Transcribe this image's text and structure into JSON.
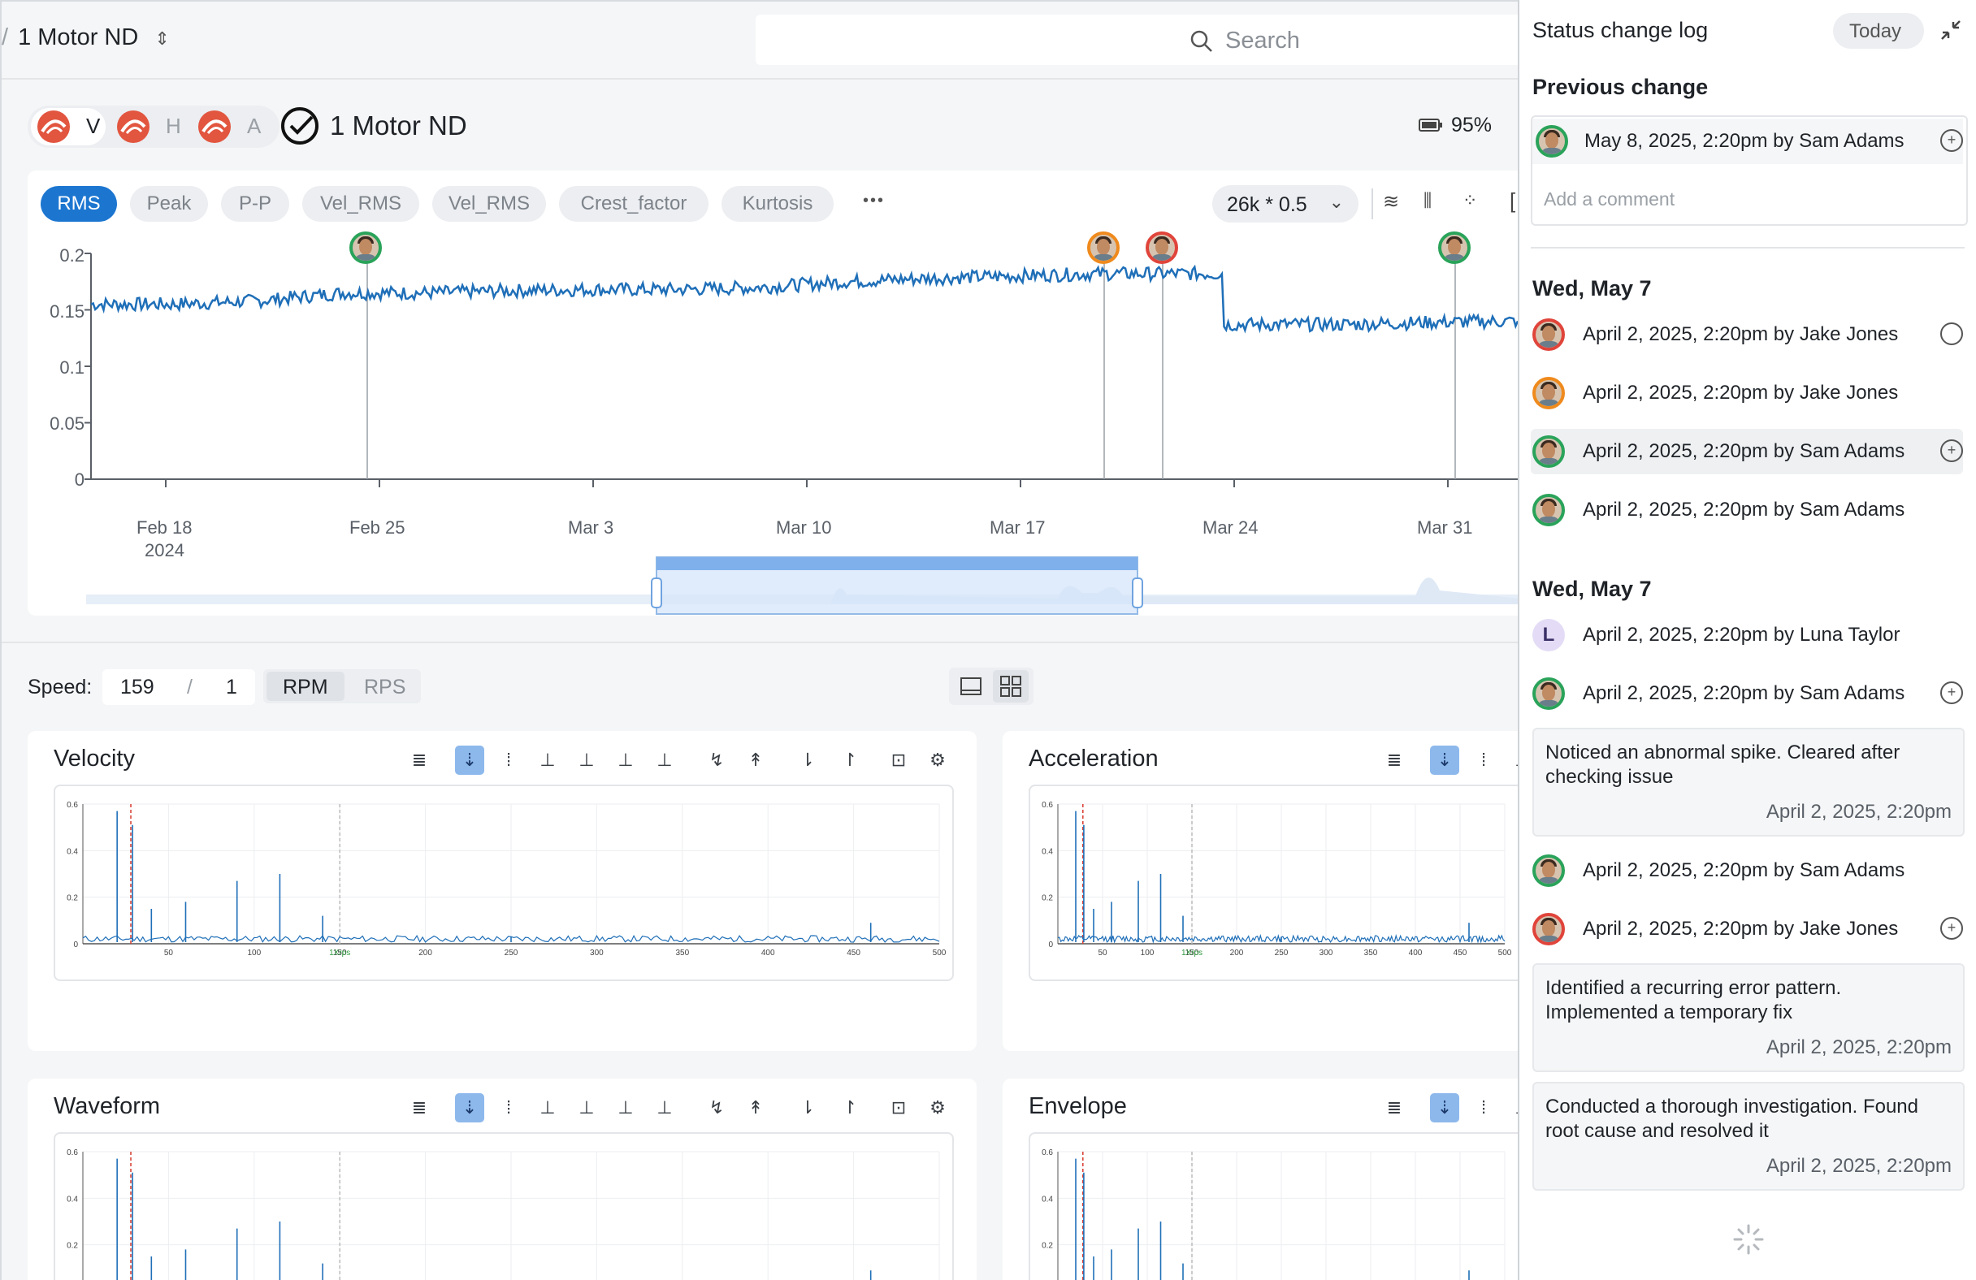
{
  "topbar": {
    "crumb": "1 Motor ND",
    "search_placeholder": "Search"
  },
  "asset": {
    "axes": [
      {
        "label": "V"
      },
      {
        "label": "H"
      },
      {
        "label": "A"
      }
    ],
    "title": "1 Motor ND",
    "battery": "95%"
  },
  "trend": {
    "tabs": [
      "RMS",
      "Peak",
      "P-P",
      "Vel_RMS",
      "Vel_RMS",
      "Crest_factor",
      "Kurtosis"
    ],
    "more": "•••",
    "sample_select": "26k * 0.5",
    "yticks": [
      "0.2",
      "0.15",
      "0.1",
      "0.05",
      "0"
    ],
    "xticks": [
      "Feb 18",
      "Feb 25",
      "Mar 3",
      "Mar 10",
      "Mar 17",
      "Mar 24",
      "Mar 31"
    ],
    "year": "2024"
  },
  "chart_data": {
    "type": "line",
    "title": "",
    "ylabel": "",
    "ylim": [
      0,
      0.2
    ],
    "x": [
      "Feb 16",
      "Feb 18",
      "Feb 21",
      "Feb 25",
      "Feb 28",
      "Mar 3",
      "Mar 6",
      "Mar 10",
      "Mar 13",
      "Mar 17",
      "Mar 19",
      "Mar 21",
      "Mar 22",
      "Mar 23",
      "Mar 24",
      "Mar 27",
      "Mar 31",
      "Apr 2"
    ],
    "series": [
      {
        "values": [
          0.155,
          0.155,
          0.158,
          0.165,
          0.165,
          0.167,
          0.168,
          0.168,
          0.17,
          0.175,
          0.178,
          0.18,
          0.182,
          0.182,
          0.137,
          0.137,
          0.139,
          0.14
        ]
      }
    ]
  },
  "speed": {
    "label": "Speed:",
    "value": "159",
    "divider": "/",
    "order": "1",
    "units": [
      "RPM",
      "RPS"
    ]
  },
  "panels": [
    {
      "title": "Velocity"
    },
    {
      "title": "Acceleration"
    },
    {
      "title": "Waveform"
    },
    {
      "title": "Envelope"
    }
  ],
  "spectrum_axis": {
    "yticks": [
      "0.6",
      "0.4",
      "0.2",
      "0"
    ],
    "xticks": [
      "50",
      "100",
      "150",
      "200",
      "250",
      "300",
      "350",
      "400",
      "450",
      "500"
    ],
    "marker": "1Xrps"
  },
  "log": {
    "title": "Status change log",
    "today": "Today",
    "prev_heading": "Previous change",
    "prev_entry": "May 8, 2025, 2:20pm by Sam Adams",
    "comment_placeholder": "Add a comment",
    "day1": "Wed, May 7",
    "day1_entries": [
      "April 2, 2025, 2:20pm by Jake Jones",
      "April 2, 2025, 2:20pm by Jake Jones",
      "April 2, 2025, 2:20pm by Sam Adams",
      "April 2, 2025, 2:20pm by Sam Adams"
    ],
    "day2": "Wed, May 7",
    "day2_entries": [
      "April 2, 2025, 2:20pm by Luna Taylor",
      "April 2, 2025, 2:20pm by Sam Adams",
      "April 2, 2025, 2:20pm by Sam Adams",
      "April 2, 2025, 2:20pm by Jake Jones"
    ],
    "initial": "L",
    "notes": [
      {
        "text": "Noticed an abnormal spike. Cleared after checking issue",
        "date": "April 2, 2025, 2:20pm"
      },
      {
        "text": "Identified a recurring error pattern. Implemented a temporary fix",
        "date": "April 2, 2025, 2:20pm"
      },
      {
        "text": "Conducted a thorough investigation. Found root cause and resolved it",
        "date": "April 2, 2025, 2:20pm"
      }
    ]
  }
}
